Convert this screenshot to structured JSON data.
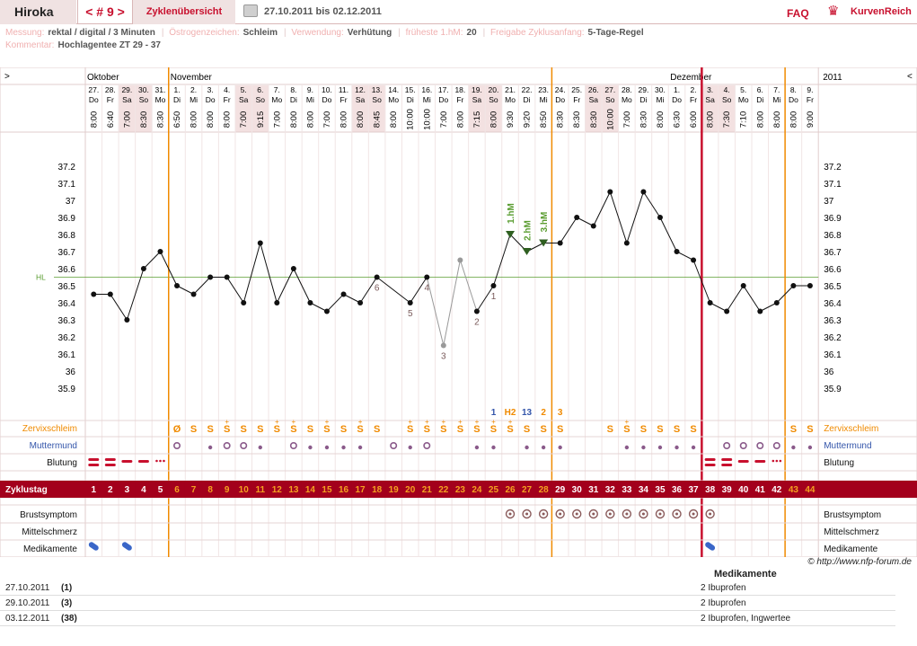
{
  "header": {
    "name": "Hiroka",
    "cycle": "< # 9 >",
    "overview": "Zyklenübersicht",
    "range": "27.10.2011 bis 02.12.2011",
    "faq": "FAQ",
    "logo": "KurvenReich"
  },
  "meta": {
    "measure_label": "Messung:",
    "measure_value": "rektal / digital / 3 Minuten",
    "estrogen_label": "Östrogenzeichen:",
    "estrogen_value": "Schleim",
    "usage_label": "Verwendung:",
    "usage_value": "Verhütung",
    "earliest_label": "früheste 1.hM:",
    "earliest_value": "20",
    "release_label": "Freigabe Zyklusanfang:",
    "release_value": "5-Tage-Regel",
    "comment_label": "Kommentar:",
    "comment_value": "Hochlagentee ZT 29 - 37"
  },
  "grid": {
    "nav_left": ">",
    "nav_right": "<",
    "year": "2011",
    "hl_label": "HL",
    "row_labels": {
      "mucus": "Zervixschleim",
      "cervix": "Muttermund",
      "bleeding": "Blutung",
      "cycleday": "Zyklustag",
      "breast": "Brustsymptom",
      "midpain": "Mittelschmerz",
      "meds": "Medikamente"
    },
    "highpoint_labels": [
      "1.hM",
      "2.hM",
      "3.hM"
    ],
    "counter_labels": {
      "c1": "1",
      "h2": "H2",
      "c13": "13",
      "c2": "2",
      "c3": "3"
    }
  },
  "chart_data": {
    "type": "line",
    "title": "",
    "ylim": [
      35.8,
      37.3
    ],
    "yticks": [
      "37.2",
      "37.1",
      "37",
      "36.9",
      "36.8",
      "36.7",
      "36.6",
      "36.5",
      "36.4",
      "36.3",
      "36.2",
      "36.1",
      "36",
      "35.9"
    ],
    "coverline": 36.55,
    "months": [
      {
        "label": "Oktober",
        "start": 0
      },
      {
        "label": "November",
        "start": 5
      },
      {
        "label": "Dezember",
        "start": 35
      }
    ],
    "dates": [
      "27.",
      "28.",
      "29.",
      "30.",
      "31.",
      "1.",
      "2.",
      "3.",
      "4.",
      "5.",
      "6.",
      "7.",
      "8.",
      "9.",
      "10.",
      "11.",
      "12.",
      "13.",
      "14.",
      "15.",
      "16.",
      "17.",
      "18.",
      "19.",
      "20.",
      "21.",
      "22.",
      "23.",
      "24.",
      "25.",
      "26.",
      "27.",
      "28.",
      "29.",
      "30.",
      "1.",
      "2.",
      "3.",
      "4.",
      "5.",
      "6.",
      "7.",
      "8.",
      "9."
    ],
    "weekdays": [
      "Do",
      "Fr",
      "Sa",
      "So",
      "Mo",
      "Di",
      "Mi",
      "Do",
      "Fr",
      "Sa",
      "So",
      "Mo",
      "Di",
      "Mi",
      "Do",
      "Fr",
      "Sa",
      "So",
      "Mo",
      "Di",
      "Mi",
      "Do",
      "Fr",
      "Sa",
      "So",
      "Mo",
      "Di",
      "Mi",
      "Do",
      "Fr",
      "Sa",
      "So",
      "Mo",
      "Di",
      "Mi",
      "Do",
      "Fr",
      "Sa",
      "So",
      "Mo",
      "Di",
      "Mi",
      "Do",
      "Fr"
    ],
    "times": [
      "8:00",
      "6:40",
      "7:00",
      "8:30",
      "8:30",
      "6:50",
      "8:00",
      "8:00",
      "8:00",
      "7:00",
      "9:15",
      "7:00",
      "8:00",
      "8:00",
      "7:00",
      "8:00",
      "8:00",
      "8:45",
      "8:00",
      "10:00",
      "10:00",
      "7:00",
      "8:00",
      "7:15",
      "8:00",
      "9:30",
      "9:20",
      "8:50",
      "8:30",
      "8:30",
      "8:30",
      "10:00",
      "7:00",
      "8:30",
      "8:00",
      "6:30",
      "6:00",
      "8:00",
      "7:30",
      "7:10",
      "8:00",
      "8:00",
      "8:00",
      "9:00"
    ],
    "cycle_days": [
      "1",
      "2",
      "3",
      "4",
      "5",
      "6",
      "7",
      "8",
      "9",
      "10",
      "11",
      "12",
      "13",
      "14",
      "15",
      "16",
      "17",
      "18",
      "19",
      "20",
      "21",
      "22",
      "23",
      "24",
      "25",
      "26",
      "27",
      "28",
      "29",
      "30",
      "31",
      "32",
      "33",
      "34",
      "35",
      "36",
      "37",
      "38",
      "39",
      "40",
      "41",
      "42",
      "43",
      "44"
    ],
    "temperatures": [
      36.45,
      36.45,
      36.3,
      36.6,
      36.7,
      36.5,
      36.45,
      36.55,
      36.55,
      36.4,
      36.75,
      36.4,
      36.6,
      36.4,
      36.35,
      36.45,
      36.4,
      36.55,
      null,
      36.4,
      36.55,
      36.15,
      36.65,
      36.35,
      36.5,
      36.8,
      36.7,
      36.75,
      36.75,
      36.9,
      36.85,
      37.05,
      36.75,
      37.05,
      36.9,
      36.7,
      36.65,
      36.4,
      36.35,
      36.5,
      36.35,
      36.4,
      36.5,
      36.5
    ],
    "excluded": [
      21,
      22
    ],
    "highpoints": [
      25,
      26,
      27
    ],
    "low_numbers": [
      {
        "index": 17,
        "label": "6"
      },
      {
        "index": 19,
        "label": "5"
      },
      {
        "index": 20,
        "label": "4"
      },
      {
        "index": 21,
        "label": "3"
      },
      {
        "index": 23,
        "label": "2"
      },
      {
        "index": 24,
        "label": "1"
      }
    ],
    "mucus": [
      "",
      "",
      "",
      "",
      "",
      "Ø",
      "S",
      "S",
      "S+",
      "S",
      "S",
      "S+",
      "S+",
      "S",
      "S+",
      "S",
      "S+",
      "S",
      "",
      "S+",
      "S+",
      "S+",
      "S+",
      "S+",
      "S+",
      "S+",
      "S",
      "S",
      "S",
      "",
      "",
      "S",
      "S+",
      "S",
      "S",
      "S",
      "S",
      "",
      "",
      "",
      "",
      "",
      "S",
      "S"
    ],
    "cervix_circles": [
      5,
      8,
      9,
      12,
      18,
      20,
      38,
      39,
      40,
      41
    ],
    "cervix_dots": [
      7,
      10,
      13,
      14,
      15,
      16,
      19,
      23,
      24,
      26,
      27,
      28,
      32,
      33,
      34,
      35,
      36,
      42,
      43
    ],
    "bleeding": [
      "heavy",
      "heavy",
      "medium",
      "medium",
      "light",
      "",
      "",
      "",
      "",
      "",
      "",
      "",
      "",
      "",
      "",
      "",
      "",
      "",
      "",
      "",
      "",
      "",
      "",
      "",
      "",
      "",
      "",
      "",
      "",
      "",
      "",
      "",
      "",
      "",
      "",
      "",
      "",
      "heavy",
      "heavy",
      "medium",
      "medium",
      "light",
      "",
      ""
    ],
    "breast": [
      25,
      26,
      27,
      28,
      29,
      30,
      31,
      32,
      33,
      34,
      35,
      36,
      37
    ],
    "meds": [
      0,
      2,
      37
    ],
    "ovulation_line": 27.5
  },
  "meds_table": {
    "title": "Medikamente",
    "rows": [
      {
        "date": "27.10.2011",
        "day": "(1)",
        "value": "2 Ibuprofen"
      },
      {
        "date": "29.10.2011",
        "day": "(3)",
        "value": "2 Ibuprofen"
      },
      {
        "date": "03.12.2011",
        "day": "(38)",
        "value": "2 Ibuprofen, Ingwertee"
      }
    ]
  },
  "copyright": "© http://www.nfp-forum.de",
  "colors": {
    "accent": "#c8102e",
    "orange": "#f08a00",
    "blue": "#3355aa",
    "green": "#5a9c30",
    "grey": "#7a5a5a"
  }
}
